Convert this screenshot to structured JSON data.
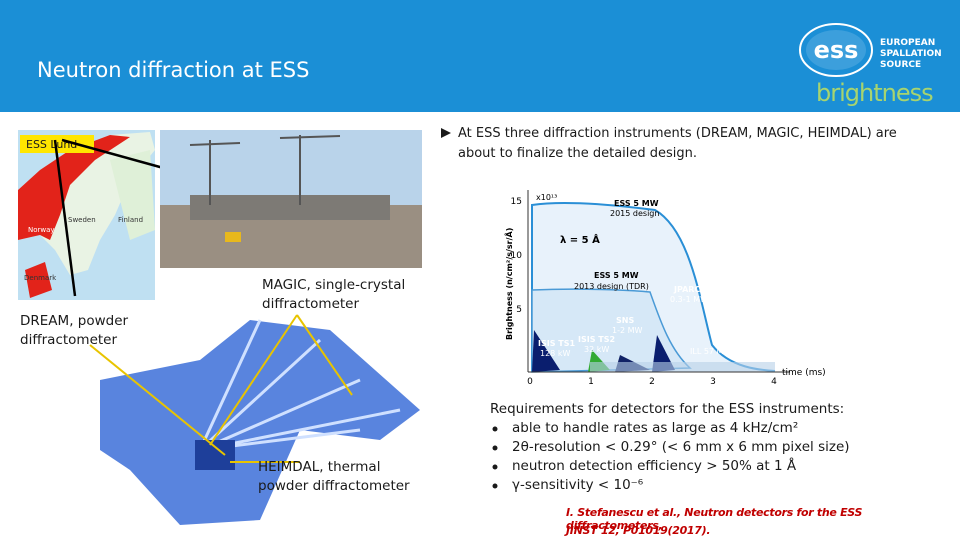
{
  "header": {
    "title": "Neutron diffraction at ESS",
    "logo": {
      "mark": "ess",
      "line1": "EUROPEAN",
      "line2": "SPALLATION",
      "line3": "SOURCE",
      "brand": "brightness"
    }
  },
  "intro": "At ESS three diffraction instruments (DREAM, MAGIC, HEIMDAL) are about to finalize the detailed design.",
  "map": {
    "label": "ESS Lund",
    "countries": [
      "Sweden",
      "Finland",
      "Norway",
      "Denmark"
    ]
  },
  "instruments": {
    "magic": "MAGIC, single-crystal diffractometer",
    "dream": "DREAM, powder diffractometer",
    "heimdal": "HEIMDAL, thermal powder diffractometer"
  },
  "figure": {
    "y_axis_label": "Brightness (n/cm²/s/sr/Å)",
    "exponent": "x10¹³",
    "yticks": [
      "15",
      "10",
      "5"
    ],
    "xticks": [
      "0",
      "1",
      "2",
      "3",
      "4"
    ],
    "x_axis_label": "time (ms)",
    "wavelength": "λ = 5 Å",
    "curves": [
      {
        "line1": "ESS 5 MW",
        "line2": "2015 design"
      },
      {
        "line1": "ESS 5 MW",
        "line2": "2013 design (TDR)"
      },
      {
        "line1": "JPARC",
        "line2": "0.3-1 MW"
      },
      {
        "line1": "SNS",
        "line2": "1-2 MW"
      },
      {
        "line1": "ISIS TS2",
        "line2": "32 kW"
      },
      {
        "line1": "ISIS TS1",
        "line2": "128 kW"
      },
      {
        "line1": "ILL 57 MW"
      }
    ]
  },
  "requirements": {
    "heading": "Requirements for detectors for the ESS instruments:",
    "items": [
      "able to handle rates as large as 4 kHz/cm²",
      "2θ-resolution < 0.29° (< 6 mm x 6 mm pixel size)",
      "neutron detection efficiency > 50% at 1 Å",
      "γ-sensitivity < 10⁻⁶"
    ]
  },
  "reference": {
    "line1": "I. Stefanescu et al., Neutron detectors for the ESS diffractometers,",
    "line2": "JINST 12, P01019(2017)."
  }
}
